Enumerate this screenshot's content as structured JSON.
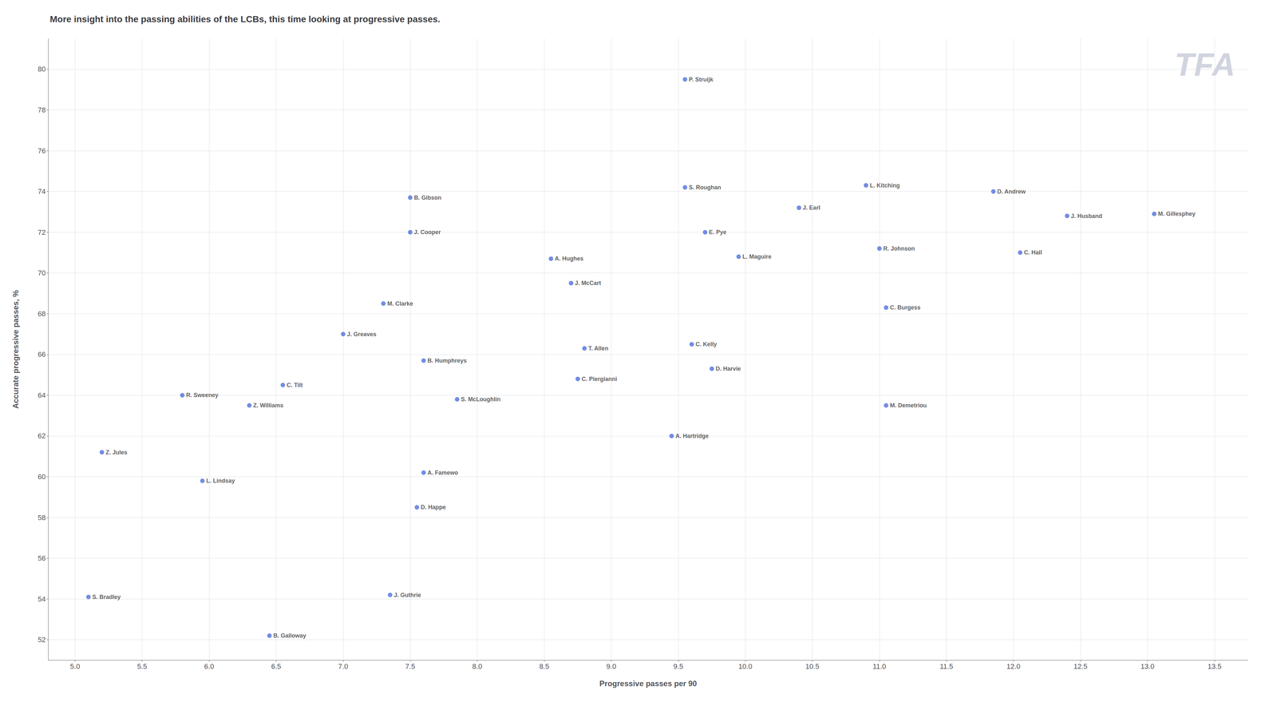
{
  "chart_data": {
    "type": "scatter",
    "title": "More insight into the passing abilities of the LCBs, this time looking at progressive passes.",
    "xlabel": "Progressive passes per 90",
    "ylabel": "Accurate progressive passes, %",
    "annotations": [
      "TFA"
    ],
    "labels": [
      "P. Struijk",
      "S. Roughan",
      "L. Kitching",
      "D. Andrew",
      "J. Husband",
      "M. Gillesphey",
      "J. Earl",
      "R. Johnson",
      "C. Hall",
      "E. Pye",
      "L. Maguire",
      "C. Burgess",
      "B. Gibson",
      "J. Cooper",
      "A. Hughes",
      "J. McCart",
      "M. Clarke",
      "T. Allen",
      "C. Kelly",
      "D. Harvie",
      "J. Greaves",
      "B. Humphreys",
      "C. Piergianni",
      "A. Hartridge",
      "M. Demetriou",
      "C. Tilt",
      "S. McLoughlin",
      "Z. Williams",
      "R. Sweeney",
      "A. Famewo",
      "D. Happe",
      "Z. Jules",
      "L. Lindsay",
      "J. Guthrie",
      "S. Bradley",
      "B. Galloway"
    ],
    "x": [
      9.55,
      9.55,
      10.9,
      11.85,
      12.4,
      13.05,
      10.4,
      11.0,
      12.05,
      9.7,
      9.95,
      11.05,
      7.5,
      7.5,
      8.55,
      8.7,
      7.3,
      8.8,
      9.6,
      9.75,
      7.0,
      7.6,
      8.75,
      9.45,
      11.05,
      6.55,
      7.85,
      6.3,
      5.8,
      7.6,
      7.55,
      5.2,
      5.95,
      7.35,
      5.1,
      6.45
    ],
    "values": [
      79.5,
      74.2,
      74.3,
      74.0,
      72.8,
      72.9,
      73.2,
      71.2,
      71.0,
      72.0,
      70.8,
      68.3,
      73.7,
      72.0,
      70.7,
      69.5,
      68.5,
      66.3,
      66.5,
      65.3,
      67.0,
      65.7,
      64.8,
      62.0,
      63.5,
      64.5,
      63.8,
      63.5,
      64.0,
      60.2,
      58.5,
      61.2,
      59.8,
      54.2,
      54.1,
      52.2
    ],
    "xlim": [
      4.8,
      13.75
    ],
    "ylim": [
      51.0,
      81.5
    ],
    "xticks": [
      {
        "value": 5,
        "label": "5.0"
      },
      5.5,
      {
        "value": 6,
        "label": "6.0"
      },
      6.5,
      {
        "value": 7,
        "label": "7.0"
      },
      7.5,
      {
        "value": 8,
        "label": "8.0"
      },
      8.5,
      {
        "value": 9,
        "label": "9.0"
      },
      9.5,
      {
        "value": 10,
        "label": "10.0"
      },
      10.5,
      {
        "value": 11,
        "label": "11.0"
      },
      11.5,
      {
        "value": 12,
        "label": "12.0"
      },
      12.5,
      {
        "value": 13,
        "label": "13.0"
      },
      13.5
    ],
    "yticks": [
      52,
      54,
      56,
      58,
      60,
      62,
      64,
      66,
      68,
      70,
      72,
      74,
      76,
      78,
      80
    ],
    "grid": true
  }
}
